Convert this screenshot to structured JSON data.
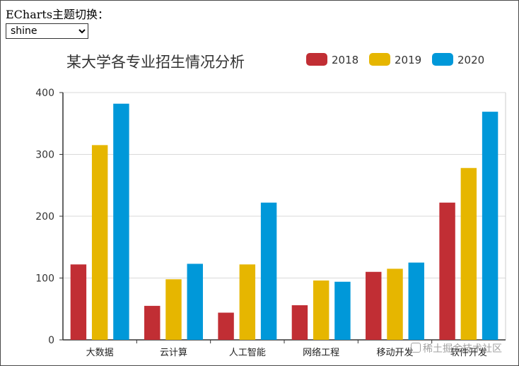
{
  "theme_switch": {
    "label": "ECharts主题切换：",
    "selected": "shine",
    "options": [
      "shine"
    ]
  },
  "colors": {
    "series": [
      "#c12e34",
      "#e6b600",
      "#0098d9"
    ]
  },
  "watermark": "稀土掘金技术社区",
  "chart_data": {
    "type": "bar",
    "title": "某大学各专业招生情况分析",
    "categories": [
      "大数据",
      "云计算",
      "人工智能",
      "网络工程",
      "移动开发",
      "软件开发"
    ],
    "series": [
      {
        "name": "2018",
        "values": [
          122,
          55,
          44,
          56,
          110,
          222
        ]
      },
      {
        "name": "2019",
        "values": [
          315,
          98,
          122,
          96,
          115,
          278
        ]
      },
      {
        "name": "2020",
        "values": [
          382,
          123,
          222,
          94,
          125,
          369
        ]
      }
    ],
    "yticks": [
      "0",
      "100",
      "200",
      "300",
      "400"
    ],
    "ylim": [
      0,
      400
    ],
    "legend_position": "top-right",
    "grid": true
  }
}
